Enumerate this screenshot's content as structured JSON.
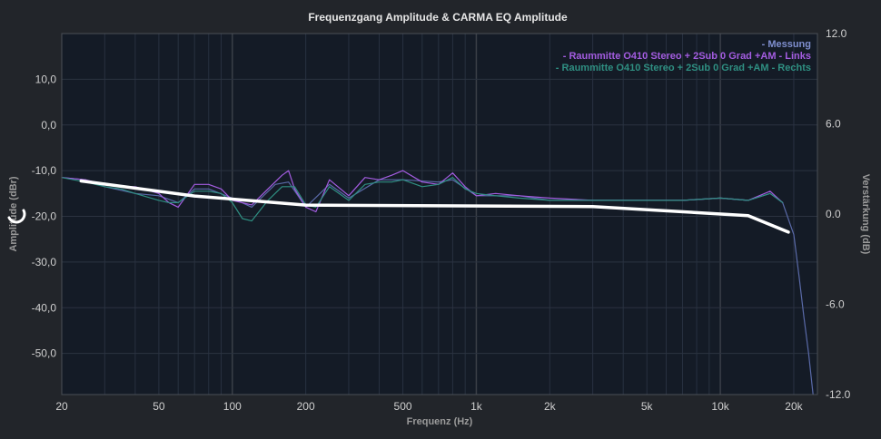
{
  "chart_data": {
    "type": "line",
    "title": "Frequenzgang Amplitude & CARMA EQ Amplitude",
    "xlabel": "Frequenz (Hz)",
    "ylabel": "Amplitude (dBr)",
    "y2label": "Verstärkung (dB)",
    "x_scale": "log",
    "xlim": [
      20,
      25000
    ],
    "ylim": [
      -59,
      20
    ],
    "y2lim": [
      -12,
      12
    ],
    "grid": true,
    "legend_position": "top-right",
    "x_ticks": [
      {
        "value": 20,
        "label": "20"
      },
      {
        "value": 50,
        "label": "50"
      },
      {
        "value": 100,
        "label": "100"
      },
      {
        "value": 200,
        "label": "200"
      },
      {
        "value": 500,
        "label": "500"
      },
      {
        "value": 1000,
        "label": "1k"
      },
      {
        "value": 2000,
        "label": "2k"
      },
      {
        "value": 5000,
        "label": "5k"
      },
      {
        "value": 10000,
        "label": "10k"
      },
      {
        "value": 20000,
        "label": "20k"
      }
    ],
    "y_ticks": [
      {
        "value": 10,
        "label": "10,0"
      },
      {
        "value": 0,
        "label": "0,0"
      },
      {
        "value": -10,
        "label": "-10,0"
      },
      {
        "value": -20,
        "label": "-20,0"
      },
      {
        "value": -30,
        "label": "-30,0"
      },
      {
        "value": -40,
        "label": "-40,0"
      },
      {
        "value": -50,
        "label": "-50,0"
      }
    ],
    "y2_ticks": [
      {
        "value": 12,
        "label": "12.0"
      },
      {
        "value": 6,
        "label": "6.0"
      },
      {
        "value": 0,
        "label": "0.0"
      },
      {
        "value": -6,
        "label": "-6.0"
      },
      {
        "value": -12,
        "label": "-12.0"
      }
    ],
    "series": [
      {
        "name": "- Messung",
        "color": "#5a6aa8",
        "axis": "left",
        "x": [
          20,
          25,
          30,
          40,
          50,
          60,
          70,
          80,
          100,
          120,
          150,
          170,
          200,
          250,
          300,
          400,
          500,
          700,
          800,
          1000,
          1500,
          2000,
          3000,
          5000,
          7000,
          10000,
          13000,
          16000,
          18000,
          20000,
          21000,
          22000,
          23000,
          24000
        ],
        "y": [
          -11.5,
          -12,
          -13.5,
          -15,
          -15.5,
          -17,
          -14,
          -14,
          -16,
          -18,
          -13,
          -12.5,
          -18,
          -13,
          -16,
          -12,
          -12,
          -12.5,
          -12,
          -15.5,
          -15.5,
          -16.5,
          -16.5,
          -16.5,
          -16.5,
          -16,
          -16.5,
          -15,
          -17,
          -24,
          -33,
          -42,
          -50,
          -59
        ]
      },
      {
        "name": "- Raummitte O410 Stereo + 2Sub 0 Grad +AM - Links",
        "color": "#a35ce0",
        "axis": "left",
        "x": [
          20,
          25,
          30,
          35,
          40,
          50,
          55,
          60,
          70,
          80,
          90,
          100,
          120,
          140,
          160,
          170,
          180,
          200,
          220,
          250,
          300,
          350,
          400,
          450,
          500,
          600,
          700,
          800,
          900,
          1000,
          1200,
          1500,
          2000,
          3000,
          5000,
          7000,
          10000,
          13000,
          16000,
          18000
        ],
        "y": [
          -11.5,
          -12,
          -13,
          -13.5,
          -13.5,
          -15,
          -17,
          -18,
          -13,
          -13,
          -14,
          -16.5,
          -17.5,
          -14,
          -11,
          -10,
          -14,
          -18,
          -19,
          -12,
          -15.5,
          -11.5,
          -12,
          -11,
          -10,
          -12.5,
          -13,
          -10.5,
          -13.5,
          -15.5,
          -15,
          -15.5,
          -16,
          -16.5,
          -16.5,
          -16.5,
          -16,
          -16.5,
          -14.5,
          -17
        ]
      },
      {
        "name": "- Raummitte O410 Stereo + 2Sub 0 Grad +AM - Rechts",
        "color": "#2f8f82",
        "axis": "left",
        "x": [
          20,
          25,
          30,
          35,
          40,
          50,
          55,
          60,
          70,
          80,
          90,
          100,
          110,
          120,
          140,
          160,
          180,
          200,
          220,
          250,
          300,
          350,
          400,
          450,
          500,
          600,
          700,
          800,
          900,
          1000,
          1200,
          1500,
          2000,
          3000,
          5000,
          7000,
          10000,
          13000,
          16000,
          18000
        ],
        "y": [
          -11.5,
          -12.5,
          -13.5,
          -14,
          -15,
          -16.5,
          -17,
          -17,
          -14.5,
          -14.5,
          -15,
          -17,
          -20.5,
          -21,
          -16.5,
          -13.5,
          -13.5,
          -17.5,
          -18,
          -13.5,
          -16.5,
          -13,
          -12.5,
          -12.5,
          -12,
          -13.5,
          -13,
          -11.5,
          -14,
          -15,
          -15.5,
          -16,
          -16.5,
          -16.5,
          -16.5,
          -16.5,
          -16,
          -16.5,
          -15,
          -17
        ]
      },
      {
        "name": "",
        "color": "#ffffff",
        "axis": "right",
        "x": [
          24,
          70,
          200,
          3000,
          13000,
          19000
        ],
        "y": [
          2.2,
          1.2,
          0.6,
          0.5,
          -0.1,
          -1.2
        ]
      }
    ]
  }
}
